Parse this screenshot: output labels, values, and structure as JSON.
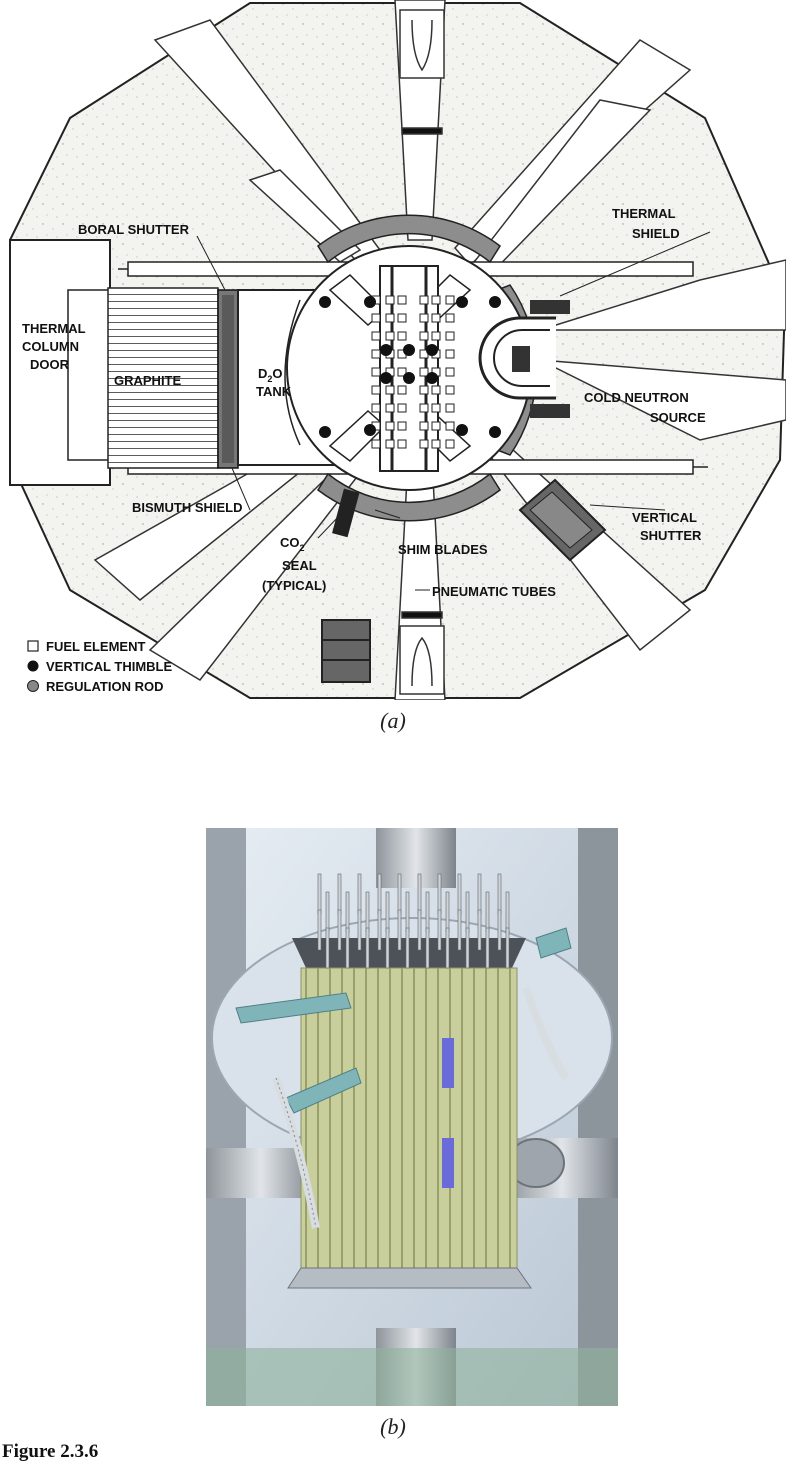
{
  "diagram_a": {
    "labels": {
      "boral_shutter": "BORAL SHUTTER",
      "thermal_shield_1": "THERMAL",
      "thermal_shield_2": "SHIELD",
      "thermal_col_1": "THERMAL",
      "thermal_col_2": "COLUMN",
      "thermal_col_3": "DOOR",
      "graphite": "GRAPHITE",
      "d2o_main": "D",
      "d2o_sub": "2",
      "d2o_o": "O",
      "d2o_tank": "TANK",
      "cold_neutron_1": "COLD NEUTRON",
      "cold_neutron_2": "SOURCE",
      "bismuth_shield": "BISMUTH SHIELD",
      "vertical_shutter_1": "VERTICAL",
      "vertical_shutter_2": "SHUTTER",
      "co2_main": "CO",
      "co2_sub": "2",
      "seal": "SEAL",
      "typical": "(TYPICAL)",
      "shim_blades": "SHIM BLADES",
      "pneumatic_tubes": "PNEUMATIC TUBES"
    },
    "legend": [
      {
        "symbol": "square",
        "label": "FUEL ELEMENT"
      },
      {
        "symbol": "dot",
        "label": "VERTICAL THIMBLE"
      },
      {
        "symbol": "gray-dot",
        "label": "REGULATION ROD"
      }
    ],
    "caption": "(a)"
  },
  "diagram_b": {
    "caption": "(b)"
  },
  "figure_label": "Figure 2.3.6",
  "colors": {
    "concrete": "#f3f3f0",
    "steel_gray": "#7a7a7a",
    "shield_gray": "#8d8d8d",
    "fuel_green": "#c9cf9c",
    "render_blue": "#cfd8e3",
    "teal_arm": "#7fb5b9",
    "purple_window": "#6a6ad8"
  }
}
